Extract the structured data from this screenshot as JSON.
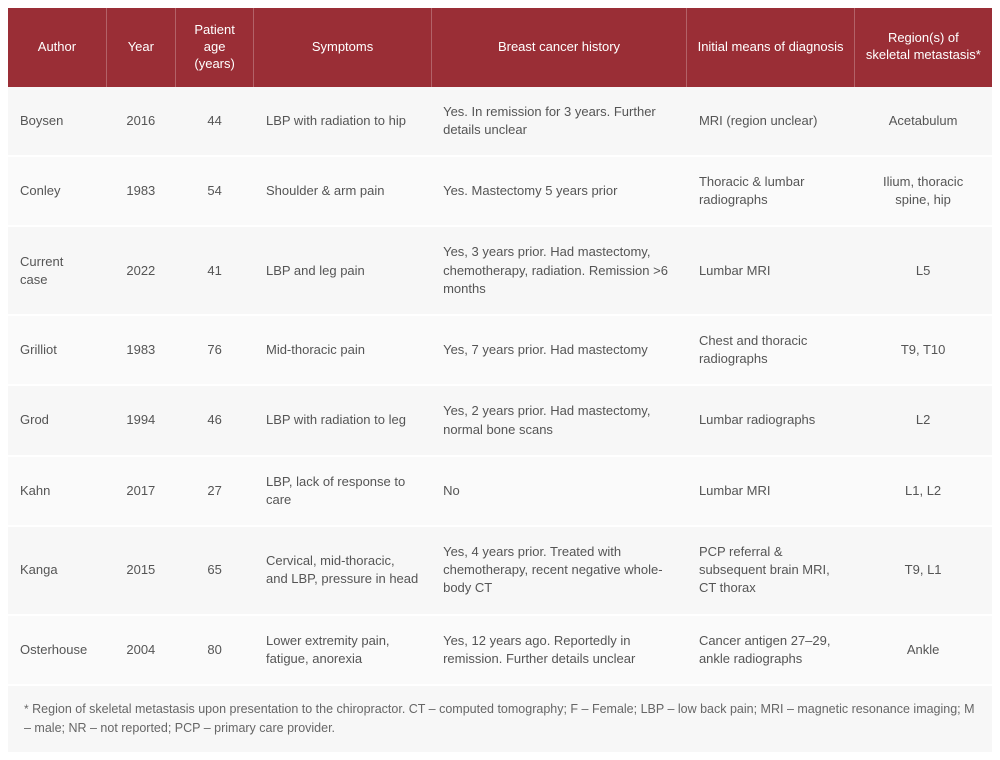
{
  "table": {
    "header_bg": "#9a2e36",
    "header_fg": "#ffffff",
    "row_bg": "#f7f7f7",
    "row_fg": "#555555",
    "columns": [
      {
        "key": "author",
        "label": "Author",
        "align": "left",
        "width": "10%"
      },
      {
        "key": "year",
        "label": "Year",
        "align": "center",
        "width": "7%"
      },
      {
        "key": "age",
        "label": "Patient age (years)",
        "align": "center",
        "width": "8%"
      },
      {
        "key": "symptoms",
        "label": "Symptoms",
        "align": "left",
        "width": "18%"
      },
      {
        "key": "history",
        "label": "Breast cancer history",
        "align": "left",
        "width": "26%"
      },
      {
        "key": "diag",
        "label": "Initial means of diagnosis",
        "align": "left",
        "width": "17%"
      },
      {
        "key": "region",
        "label": "Region(s) of skeletal metastasis*",
        "align": "center",
        "width": "14%"
      }
    ],
    "rows": [
      {
        "author": "Boysen",
        "year": "2016",
        "age": "44",
        "symptoms": "LBP with radiation to hip",
        "history": "Yes. In remission for 3 years. Further details unclear",
        "diag": "MRI (region unclear)",
        "region": "Acetabulum"
      },
      {
        "author": "Conley",
        "year": "1983",
        "age": "54",
        "symptoms": "Shoulder & arm pain",
        "history": "Yes. Mastectomy 5 years prior",
        "diag": "Thoracic & lumbar radiographs",
        "region": "Ilium, thoracic spine, hip"
      },
      {
        "author": "Current case",
        "year": "2022",
        "age": "41",
        "symptoms": "LBP and leg pain",
        "history": "Yes, 3 years prior. Had mastectomy, chemotherapy, radiation. Remission >6 months",
        "diag": "Lumbar MRI",
        "region": "L5"
      },
      {
        "author": "Grilliot",
        "year": "1983",
        "age": "76",
        "symptoms": "Mid-thoracic pain",
        "history": "Yes, 7 years prior. Had mastectomy",
        "diag": "Chest and thoracic radiographs",
        "region": "T9, T10"
      },
      {
        "author": "Grod",
        "year": "1994",
        "age": "46",
        "symptoms": "LBP with radiation to leg",
        "history": "Yes, 2 years prior. Had mastectomy, normal bone scans",
        "diag": "Lumbar radiographs",
        "region": "L2"
      },
      {
        "author": "Kahn",
        "year": "2017",
        "age": "27",
        "symptoms": "LBP, lack of response to care",
        "history": "No",
        "diag": "Lumbar MRI",
        "region": "L1, L2"
      },
      {
        "author": "Kanga",
        "year": "2015",
        "age": "65",
        "symptoms": "Cervical, mid-thoracic, and LBP, pressure in head",
        "history": "Yes, 4 years prior. Treated with chemotherapy, recent negative whole-body CT",
        "diag": "PCP referral & subsequent brain MRI, CT thorax",
        "region": "T9, L1"
      },
      {
        "author": "Osterhouse",
        "year": "2004",
        "age": "80",
        "symptoms": "Lower extremity pain, fatigue, anorexia",
        "history": "Yes, 12 years ago. Reportedly in remission. Further details unclear",
        "diag": "Cancer antigen 27–29, ankle radiographs",
        "region": "Ankle"
      }
    ],
    "footnote": "Region of skeletal metastasis upon presentation to the chiropractor. CT – computed tomography; F – Female; LBP – low back pain; MRI – magnetic resonance imaging; M – male; NR – not reported; PCP – primary care provider.",
    "footnote_marker": "*"
  }
}
